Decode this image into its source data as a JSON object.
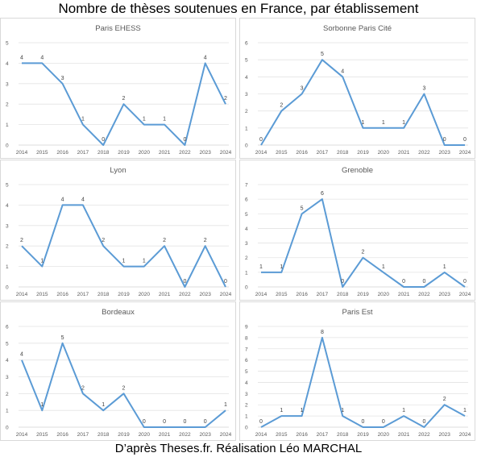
{
  "title": "Nombre de thèses soutenues en France, par établissement",
  "caption": "D’après Theses.fr. Réalisation Léo MARCHAL",
  "colors": {
    "series": "#5b9bd5",
    "grid": "#e3e3e3"
  },
  "chart_data": [
    {
      "type": "line",
      "title": "Paris EHESS",
      "x": [
        "2014",
        "2015",
        "2016",
        "2017",
        "2018",
        "2019",
        "2020",
        "2021",
        "2022",
        "2023",
        "2024"
      ],
      "values": [
        4,
        4,
        3,
        1,
        0,
        2,
        1,
        1,
        0,
        4,
        2
      ],
      "ylim": [
        0,
        5
      ],
      "yticks": [
        "0",
        "1",
        "2",
        "3",
        "4",
        "5"
      ],
      "grid": true
    },
    {
      "type": "line",
      "title": "Sorbonne Paris Cité",
      "x": [
        "2014",
        "2015",
        "2016",
        "2017",
        "2018",
        "2019",
        "2020",
        "2021",
        "2022",
        "2023",
        "2024"
      ],
      "values": [
        0,
        2,
        3,
        5,
        4,
        1,
        1,
        1,
        3,
        0,
        0
      ],
      "ylim": [
        0,
        6
      ],
      "yticks": [
        "0",
        "1",
        "2",
        "3",
        "4",
        "5",
        "6"
      ],
      "grid": true
    },
    {
      "type": "line",
      "title": "Lyon",
      "x": [
        "2014",
        "2015",
        "2016",
        "2017",
        "2018",
        "2019",
        "2020",
        "2021",
        "2022",
        "2023",
        "2024"
      ],
      "values": [
        2,
        1,
        4,
        4,
        2,
        1,
        1,
        2,
        0,
        2,
        0
      ],
      "ylim": [
        0,
        5
      ],
      "yticks": [
        "0",
        "1",
        "2",
        "3",
        "4",
        "5"
      ],
      "grid": true
    },
    {
      "type": "line",
      "title": "Grenoble",
      "x": [
        "2014",
        "2015",
        "2016",
        "2017",
        "2018",
        "2019",
        "2020",
        "2021",
        "2022",
        "2023",
        "2024"
      ],
      "values": [
        1,
        1,
        5,
        6,
        0,
        2,
        1,
        0,
        0,
        1,
        0
      ],
      "ylim": [
        0,
        7
      ],
      "yticks": [
        "0",
        "1",
        "2",
        "3",
        "4",
        "5",
        "6",
        "7"
      ],
      "grid": true
    },
    {
      "type": "line",
      "title": "Bordeaux",
      "x": [
        "2014",
        "2015",
        "2016",
        "2017",
        "2018",
        "2019",
        "2020",
        "2021",
        "2022",
        "2023",
        "2024"
      ],
      "values": [
        4,
        1,
        5,
        2,
        1,
        2,
        0,
        0,
        0,
        0,
        1
      ],
      "ylim": [
        0,
        6
      ],
      "yticks": [
        "0",
        "1",
        "2",
        "3",
        "4",
        "5",
        "6"
      ],
      "grid": true
    },
    {
      "type": "line",
      "title": "Paris Est",
      "x": [
        "2014",
        "2015",
        "2016",
        "2017",
        "2018",
        "2019",
        "2020",
        "2021",
        "2022",
        "2023",
        "2024"
      ],
      "values": [
        0,
        1,
        1,
        8,
        1,
        0,
        0,
        1,
        0,
        2,
        1
      ],
      "ylim": [
        0,
        9
      ],
      "yticks": [
        "0",
        "1",
        "2",
        "3",
        "4",
        "5",
        "6",
        "7",
        "8",
        "9"
      ],
      "grid": true
    }
  ]
}
